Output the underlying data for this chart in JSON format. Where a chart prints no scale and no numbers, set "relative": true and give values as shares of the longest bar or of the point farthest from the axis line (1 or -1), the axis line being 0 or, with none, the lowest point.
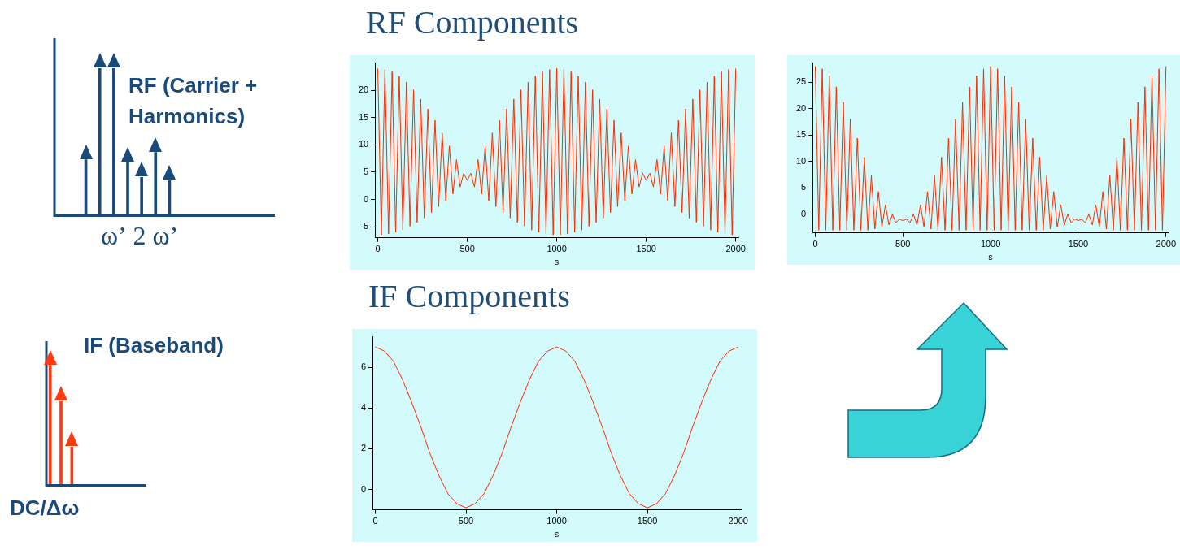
{
  "chart_data": [
    {
      "type": "bar",
      "relative": true,
      "color": "#1a4a7a",
      "annotations": [
        "RF (Carrier + Harmonics)"
      ],
      "categories": [
        null,
        null,
        "ω’",
        null,
        null,
        "2 ω’",
        null
      ],
      "values": [
        0.38,
        1,
        1,
        0.36,
        0.26,
        0.43,
        0.24
      ]
    },
    {
      "type": "bar",
      "relative": true,
      "color": "#ff3a10",
      "annotations": [
        "IF (Baseband)"
      ],
      "xlabel": "DC/Δω",
      "categories": [
        null,
        null,
        null
      ],
      "values": [
        1,
        0.7,
        0.32
      ]
    },
    {
      "type": "line",
      "title": "RF Components",
      "xlabel": "s",
      "color": "#ff2a00",
      "xlim": [
        -15,
        2015
      ],
      "xticks": [
        0,
        500,
        1000,
        1500,
        2000
      ],
      "ylim": [
        -7,
        25
      ],
      "yticks": [
        -5,
        0,
        5,
        10,
        15,
        20
      ],
      "x": [
        0,
        20,
        40,
        60,
        80,
        100,
        120,
        140,
        160,
        180,
        200,
        220,
        240,
        260,
        280,
        300,
        320,
        340,
        360,
        380,
        400,
        420,
        440,
        460,
        480,
        500,
        520,
        540,
        560,
        580,
        600,
        620,
        640,
        660,
        680,
        700,
        720,
        740,
        760,
        780,
        800,
        820,
        840,
        860,
        880,
        900,
        920,
        940,
        960,
        980,
        1000,
        1020,
        1040,
        1060,
        1080,
        1100,
        1120,
        1140,
        1160,
        1180,
        1200,
        1220,
        1240,
        1260,
        1280,
        1300,
        1320,
        1340,
        1360,
        1380,
        1400,
        1420,
        1440,
        1460,
        1480,
        1500,
        1520,
        1540,
        1560,
        1580,
        1600,
        1620,
        1640,
        1660,
        1680,
        1700,
        1720,
        1740,
        1760,
        1780,
        1800,
        1820,
        1840,
        1860,
        1880,
        1900,
        1920,
        1940,
        1960,
        1980,
        2000
      ],
      "values": [
        24,
        -6.5,
        23.8,
        -6.3,
        23.4,
        -6.0,
        22.6,
        -5.6,
        21.5,
        -4.9,
        20.1,
        -4.2,
        18.4,
        -3.4,
        16.6,
        -2.4,
        14.5,
        -1.3,
        12.2,
        -0.2,
        9.8,
        1.0,
        7.3,
        2.3,
        4.8,
        3.5,
        4.8,
        2.3,
        7.3,
        1.0,
        9.8,
        -0.2,
        12.2,
        -1.3,
        14.5,
        -2.4,
        16.6,
        -3.4,
        18.4,
        -4.2,
        20.1,
        -4.9,
        21.5,
        -5.6,
        22.6,
        -6.0,
        23.4,
        -6.3,
        23.8,
        -6.5,
        24,
        -6.5,
        23.8,
        -6.3,
        23.4,
        -6.0,
        22.6,
        -5.6,
        21.5,
        -4.9,
        20.1,
        -4.2,
        18.4,
        -3.4,
        16.6,
        -2.4,
        14.5,
        -1.3,
        12.2,
        -0.2,
        9.8,
        1.0,
        7.3,
        2.3,
        4.8,
        3.5,
        4.8,
        2.3,
        7.3,
        1.0,
        9.8,
        -0.2,
        12.2,
        -1.3,
        14.5,
        -2.4,
        16.6,
        -3.4,
        18.4,
        -4.2,
        20.1,
        -4.9,
        21.5,
        -5.6,
        22.6,
        -6.0,
        23.4,
        -6.3,
        23.8,
        -6.5,
        24
      ]
    },
    {
      "type": "line",
      "xlabel": "s",
      "color": "#ff2a00",
      "xlim": [
        -15,
        2015
      ],
      "xticks": [
        0,
        500,
        1000,
        1500,
        2000
      ],
      "ylim": [
        -3.5,
        28.6
      ],
      "yticks": [
        0,
        5,
        10,
        15,
        20,
        25
      ],
      "x": [
        0,
        20,
        40,
        60,
        80,
        100,
        120,
        140,
        160,
        180,
        200,
        220,
        240,
        260,
        280,
        300,
        320,
        340,
        360,
        380,
        400,
        420,
        440,
        460,
        480,
        500,
        520,
        540,
        560,
        580,
        600,
        620,
        640,
        660,
        680,
        700,
        720,
        740,
        760,
        780,
        800,
        820,
        840,
        860,
        880,
        900,
        920,
        940,
        960,
        980,
        1000,
        1020,
        1040,
        1060,
        1080,
        1100,
        1120,
        1140,
        1160,
        1180,
        1200,
        1220,
        1240,
        1260,
        1280,
        1300,
        1320,
        1340,
        1360,
        1380,
        1400,
        1420,
        1440,
        1460,
        1480,
        1500,
        1520,
        1540,
        1560,
        1580,
        1600,
        1620,
        1640,
        1660,
        1680,
        1700,
        1720,
        1740,
        1760,
        1780,
        1800,
        1820,
        1840,
        1860,
        1880,
        1900,
        1920,
        1940,
        1960,
        1980,
        2000
      ],
      "values": [
        28,
        -3.0,
        27.5,
        -3.0,
        26.2,
        -3.0,
        24.1,
        -3.0,
        21.2,
        -3.0,
        18.0,
        -3.0,
        14.4,
        -3.0,
        10.8,
        -3.0,
        7.3,
        -2.8,
        4.3,
        -2.4,
        1.8,
        -2.0,
        0.0,
        -1.6,
        -0.9,
        -1.2,
        -0.9,
        -1.6,
        0.0,
        -2.0,
        1.8,
        -2.4,
        4.3,
        -2.8,
        7.3,
        -3.0,
        10.8,
        -3.0,
        14.4,
        -3.0,
        18.0,
        -3.0,
        21.2,
        -3.0,
        24.1,
        -3.0,
        26.2,
        -3.0,
        27.5,
        -3.0,
        28,
        -3.0,
        27.5,
        -3.0,
        26.2,
        -3.0,
        24.1,
        -3.0,
        21.2,
        -3.0,
        18.0,
        -3.0,
        14.4,
        -3.0,
        10.8,
        -3.0,
        7.3,
        -2.8,
        4.3,
        -2.4,
        1.8,
        -2.0,
        0.0,
        -1.6,
        -0.9,
        -1.2,
        -0.9,
        -1.6,
        0.0,
        -2.0,
        1.8,
        -2.4,
        4.3,
        -2.8,
        7.3,
        -3.0,
        10.8,
        -3.0,
        14.4,
        -3.0,
        18.0,
        -3.0,
        21.2,
        -3.0,
        24.1,
        -3.0,
        26.2,
        -3.0,
        27.5,
        -3.0,
        28
      ]
    },
    {
      "type": "line",
      "title": "IF Components",
      "xlabel": "s",
      "color": "#ff2a00",
      "xlim": [
        -15,
        2015
      ],
      "xticks": [
        0,
        500,
        1000,
        1500,
        2000
      ],
      "ylim": [
        -1,
        7.5
      ],
      "yticks": [
        0,
        2,
        4,
        6
      ],
      "x": [
        0,
        50,
        100,
        150,
        200,
        250,
        300,
        350,
        400,
        450,
        500,
        550,
        600,
        650,
        700,
        750,
        800,
        850,
        900,
        950,
        1000,
        1050,
        1100,
        1150,
        1200,
        1250,
        1300,
        1350,
        1400,
        1450,
        1500,
        1550,
        1600,
        1650,
        1700,
        1750,
        1800,
        1850,
        1900,
        1950,
        2000
      ],
      "values": [
        7.0,
        6.8,
        6.3,
        5.4,
        4.3,
        3.1,
        1.8,
        0.7,
        -0.2,
        -0.7,
        -0.9,
        -0.7,
        -0.2,
        0.7,
        1.8,
        3.1,
        4.3,
        5.4,
        6.3,
        6.8,
        7.0,
        6.8,
        6.3,
        5.4,
        4.3,
        3.1,
        1.8,
        0.7,
        -0.2,
        -0.7,
        -0.9,
        -0.7,
        -0.2,
        0.7,
        1.8,
        3.1,
        4.3,
        5.4,
        6.3,
        6.8,
        7.0
      ]
    }
  ]
}
